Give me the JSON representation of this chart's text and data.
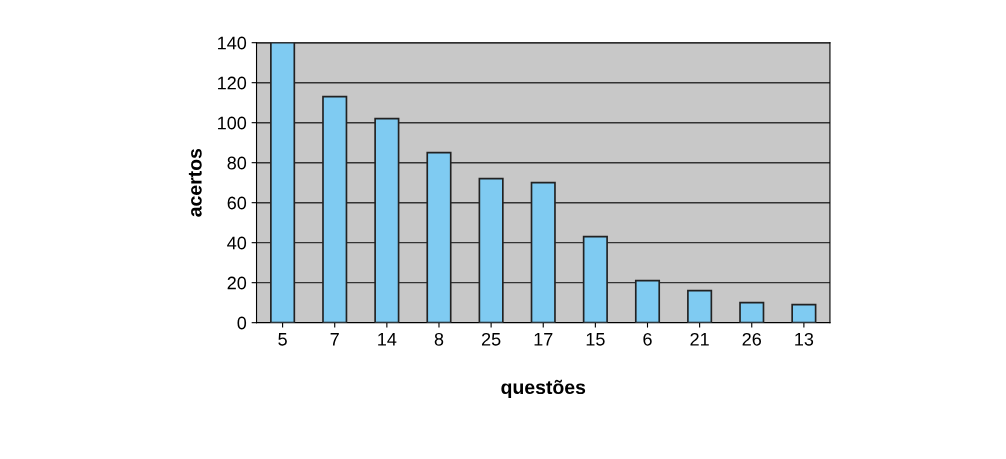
{
  "chart_data": {
    "type": "bar",
    "xlabel": "questões",
    "ylabel": "acertos",
    "categories": [
      "5",
      "7",
      "14",
      "8",
      "25",
      "17",
      "15",
      "6",
      "21",
      "26",
      "13"
    ],
    "values": [
      140,
      113,
      102,
      85,
      72,
      70,
      43,
      21,
      16,
      10,
      9
    ],
    "color": "#7fcbf2",
    "ylim": [
      0,
      140
    ],
    "yticks": [
      0,
      20,
      40,
      60,
      80,
      100,
      120,
      140
    ],
    "grid": "y"
  }
}
